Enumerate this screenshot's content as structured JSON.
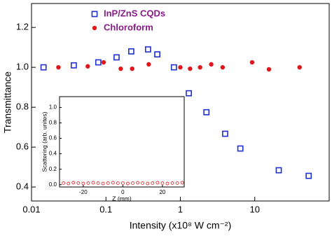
{
  "chart_data": [
    {
      "type": "scatter",
      "x_label": "Intensity (x10⁸ W cm⁻²)",
      "y_label": "Transmittance",
      "log_x": true,
      "xlim": [
        0.01,
        100
      ],
      "ylim": [
        0.33,
        1.32
      ],
      "xticks": [
        0.01,
        0.1,
        1,
        10
      ],
      "yticks": [
        0.4,
        0.6,
        0.8,
        {
          "value": 1,
          "label": "1.0"
        },
        1.2
      ],
      "legend": "top-left",
      "series": [
        {
          "name": "InP/ZnS CQDs",
          "color": "#1f2fd0",
          "marker": "square-open",
          "x": [
            0.0145,
            0.037,
            0.079,
            0.139,
            0.219,
            0.368,
            0.49,
            0.82,
            1.3,
            2.24,
            4.0,
            6.4,
            21,
            53
          ],
          "values": [
            1.0,
            1.01,
            1.025,
            1.05,
            1.08,
            1.09,
            1.065,
            1.0,
            0.87,
            0.775,
            0.667,
            0.593,
            0.484,
            0.456
          ]
        },
        {
          "name": "Chloroform",
          "color": "#e0161b",
          "marker": "circle",
          "x": [
            0.023,
            0.057,
            0.093,
            0.158,
            0.225,
            0.376,
            1.0,
            1.35,
            1.84,
            2.6,
            3.7,
            9.2,
            15.5,
            40
          ],
          "values": [
            1.0,
            1.005,
            1.025,
            0.993,
            0.993,
            1.015,
            1.0,
            0.993,
            1.0,
            1.015,
            1.0,
            1.025,
            0.99,
            1.0
          ]
        }
      ]
    },
    {
      "type": "scatter",
      "x_label": "Z (mm)",
      "y_label": "Scattering (arb. unites)",
      "log_x": false,
      "xlim": [
        -32,
        31
      ],
      "ylim": [
        -0.03,
        1.14
      ],
      "xticks": [
        -20,
        0,
        20
      ],
      "yticks": [
        {
          "value": 0,
          "label": "0.0"
        },
        0.2,
        0.4,
        0.6,
        0.8,
        {
          "value": 1,
          "label": "1.0"
        }
      ],
      "series": [
        {
          "name": null,
          "color": "#e0161b",
          "marker": "circle-open",
          "x": [
            -30,
            -27.5,
            -25,
            -22.5,
            -20,
            -17.5,
            -15,
            -12.5,
            -10,
            -7.5,
            -5,
            -2.5,
            0,
            2.5,
            5,
            7.5,
            10,
            12.5,
            15,
            17.5,
            20,
            22.5,
            25,
            27.5,
            30
          ],
          "values": [
            0.02,
            0.015,
            0.025,
            0.02,
            0.015,
            0.02,
            0.025,
            0.02,
            0.015,
            0.02,
            0.025,
            0.02,
            0.02,
            0.015,
            0.02,
            0.025,
            0.02,
            0.015,
            0.02,
            0.025,
            0.02,
            0.015,
            0.02,
            0.02,
            0.025
          ]
        }
      ]
    }
  ]
}
